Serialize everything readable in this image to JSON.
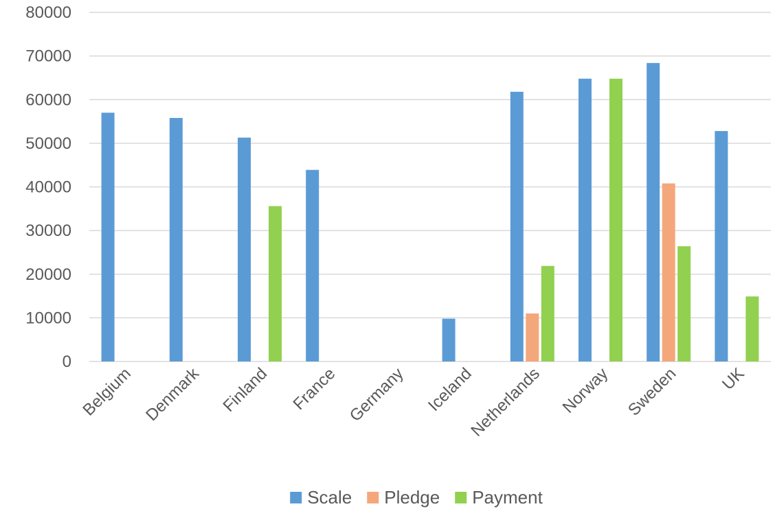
{
  "chart_data": {
    "type": "bar",
    "title": "",
    "xlabel": "",
    "ylabel": "",
    "ylim": [
      0,
      80000
    ],
    "yticks": [
      0,
      10000,
      20000,
      30000,
      40000,
      50000,
      60000,
      70000,
      80000
    ],
    "grid": true,
    "legend_position": "bottom",
    "categories": [
      "Belgium",
      "Denmark",
      "Finland",
      "France",
      "Germany",
      "Iceland",
      "Netherlands",
      "Norway",
      "Sweden",
      "UK"
    ],
    "series": [
      {
        "name": "Scale",
        "color": "#5b9bd5",
        "values": [
          57000,
          55800,
          51300,
          43900,
          0,
          9800,
          61800,
          64800,
          68400,
          52800
        ]
      },
      {
        "name": "Pledge",
        "color": "#f4a77b",
        "values": [
          0,
          0,
          0,
          0,
          0,
          0,
          11000,
          0,
          40800,
          0
        ]
      },
      {
        "name": "Payment",
        "color": "#92d050",
        "values": [
          0,
          0,
          35600,
          0,
          0,
          0,
          21900,
          64800,
          26400,
          14900
        ]
      }
    ]
  }
}
